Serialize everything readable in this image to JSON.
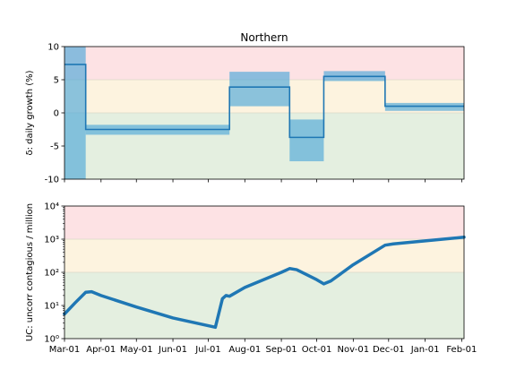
{
  "chart_data": [
    {
      "type": "line",
      "title": "Northern",
      "ylabel": "δ: daily growth (%)",
      "ylim": [
        -10,
        10
      ],
      "yticks": [
        -10,
        -5,
        0,
        5,
        10
      ],
      "xticks": [
        "Mar-01",
        "Apr-01",
        "May-01",
        "Jun-01",
        "Jul-01",
        "Aug-01",
        "Sep-01",
        "Oct-01",
        "Nov-01",
        "Dec-01",
        "Jan-01",
        "Feb-01"
      ],
      "x_range": [
        "2020-03-01",
        "2021-02-03"
      ],
      "zones": [
        {
          "from": 5,
          "to": 10,
          "color": "#fde2e4"
        },
        {
          "from": 0,
          "to": 5,
          "color": "#fdf3df"
        },
        {
          "from": -10,
          "to": 0,
          "color": "#e4efe0"
        }
      ],
      "series": [
        {
          "style": "step",
          "color": "#1f77b4",
          "bands": [
            {
              "start": "2020-03-01",
              "end": "2020-03-19",
              "mean": 7.3,
              "low": -10.0,
              "high": 10.0
            },
            {
              "start": "2020-03-19",
              "end": "2020-07-19",
              "mean": -2.5,
              "low": -3.3,
              "high": -1.8
            },
            {
              "start": "2020-07-19",
              "end": "2020-09-08",
              "mean": 3.9,
              "low": 1.0,
              "high": 6.2
            },
            {
              "start": "2020-09-08",
              "end": "2020-10-07",
              "mean": -3.7,
              "low": -7.3,
              "high": -1.0
            },
            {
              "start": "2020-10-07",
              "end": "2020-11-28",
              "mean": 5.5,
              "low": 4.8,
              "high": 6.3
            },
            {
              "start": "2020-11-28",
              "end": "2021-02-03",
              "mean": 1.0,
              "low": 0.3,
              "high": 1.5
            }
          ]
        }
      ]
    },
    {
      "type": "line",
      "ylabel": "UC: uncorr contagious / million",
      "yscale": "log",
      "ylim": [
        1,
        10000
      ],
      "yticks": [
        "10⁰",
        "10¹",
        "10²",
        "10³",
        "10⁴"
      ],
      "xticks": [
        "Mar-01",
        "Apr-01",
        "May-01",
        "Jun-01",
        "Jul-01",
        "Aug-01",
        "Sep-01",
        "Oct-01",
        "Nov-01",
        "Dec-01",
        "Jan-01",
        "Feb-01"
      ],
      "x_range": [
        "2020-03-01",
        "2021-02-03"
      ],
      "zones": [
        {
          "from": 1000,
          "to": 10000,
          "color": "#fde2e4"
        },
        {
          "from": 100,
          "to": 1000,
          "color": "#fdf3df"
        },
        {
          "from": 1,
          "to": 100,
          "color": "#e4efe0"
        }
      ],
      "series": [
        {
          "color": "#1f77b4",
          "x": [
            "2020-03-01",
            "2020-03-10",
            "2020-03-19",
            "2020-03-24",
            "2020-04-01",
            "2020-05-01",
            "2020-06-01",
            "2020-07-07",
            "2020-07-13",
            "2020-07-16",
            "2020-07-19",
            "2020-08-01",
            "2020-09-01",
            "2020-09-08",
            "2020-09-14",
            "2020-10-01",
            "2020-10-07",
            "2020-10-13",
            "2020-11-01",
            "2020-11-28",
            "2020-12-05",
            "2021-01-01",
            "2021-02-03"
          ],
          "values": [
            5.5,
            12,
            25,
            26,
            20,
            9,
            4.2,
            2.2,
            16,
            20,
            19,
            35,
            100,
            130,
            120,
            60,
            45,
            55,
            170,
            660,
            720,
            890,
            1150
          ]
        }
      ]
    }
  ]
}
